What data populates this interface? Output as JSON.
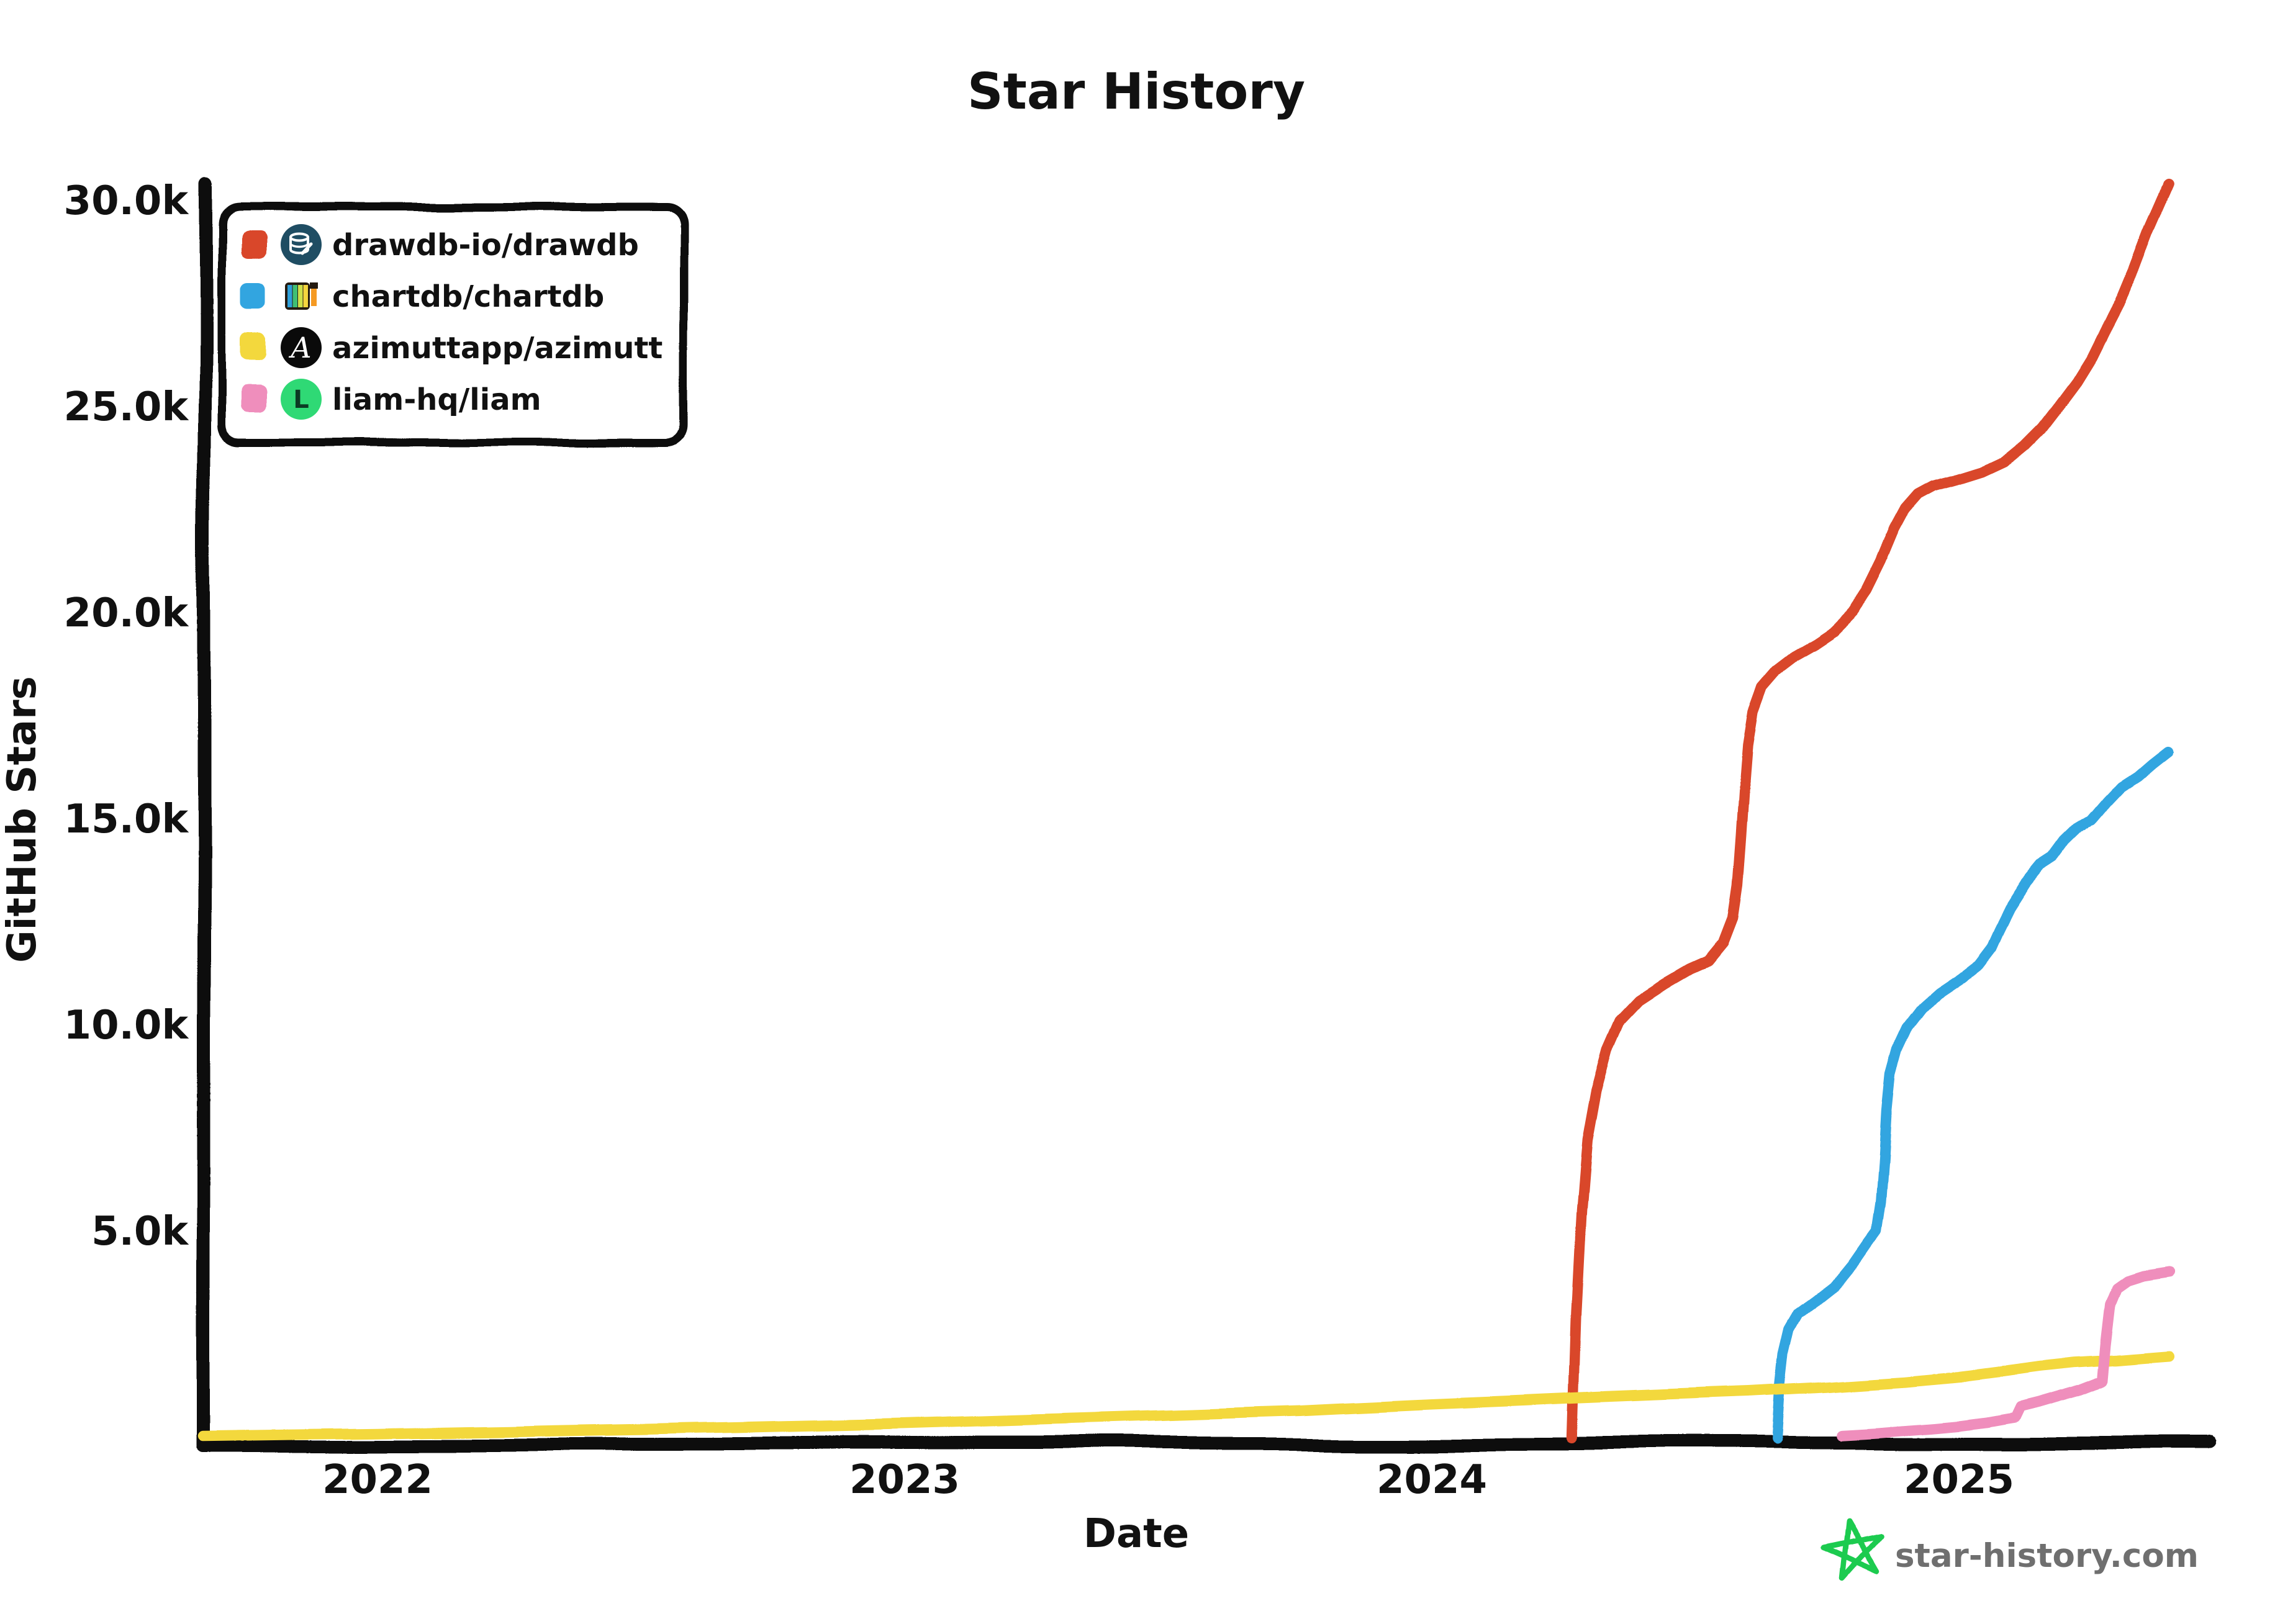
{
  "title": "Star History",
  "watermark": "star-history.com",
  "chart_data": {
    "type": "line",
    "title": "Star History",
    "xlabel": "Date",
    "ylabel": "GitHub Stars",
    "x_ticks": [
      {
        "label": "2022",
        "value": 2022
      },
      {
        "label": "2023",
        "value": 2023
      },
      {
        "label": "2024",
        "value": 2024
      },
      {
        "label": "2025",
        "value": 2025
      }
    ],
    "y_ticks": [
      {
        "label": "5.0k",
        "value": 5000
      },
      {
        "label": "10.0k",
        "value": 10000
      },
      {
        "label": "15.0k",
        "value": 15000
      },
      {
        "label": "20.0k",
        "value": 20000
      },
      {
        "label": "25.0k",
        "value": 25000
      },
      {
        "label": "30.0k",
        "value": 30000
      }
    ],
    "xlim": [
      2021.67,
      2025.48
    ],
    "ylim": [
      0,
      30500
    ],
    "grid": false,
    "legend_position": "top-left",
    "series": [
      {
        "name": "drawdb-io/drawdb",
        "color": "#d9472b",
        "icon": "drawdb-avatar",
        "data": [
          [
            2024.266,
            0
          ],
          [
            2024.273,
            3000
          ],
          [
            2024.283,
            5500
          ],
          [
            2024.294,
            7200
          ],
          [
            2024.311,
            8400
          ],
          [
            2024.332,
            9400
          ],
          [
            2024.356,
            10100
          ],
          [
            2024.393,
            10600
          ],
          [
            2024.441,
            11000
          ],
          [
            2024.488,
            11350
          ],
          [
            2024.523,
            11550
          ],
          [
            2024.552,
            12000
          ],
          [
            2024.57,
            12600
          ],
          [
            2024.579,
            13400
          ],
          [
            2024.586,
            14600
          ],
          [
            2024.592,
            15800
          ],
          [
            2024.598,
            16800
          ],
          [
            2024.608,
            17600
          ],
          [
            2024.625,
            18200
          ],
          [
            2024.652,
            18600
          ],
          [
            2024.688,
            18950
          ],
          [
            2024.729,
            19250
          ],
          [
            2024.764,
            19550
          ],
          [
            2024.799,
            20000
          ],
          [
            2024.826,
            20500
          ],
          [
            2024.853,
            21200
          ],
          [
            2024.879,
            22000
          ],
          [
            2024.9,
            22500
          ],
          [
            2024.924,
            22850
          ],
          [
            2024.953,
            23050
          ],
          [
            2024.994,
            23200
          ],
          [
            2025.044,
            23400
          ],
          [
            2025.086,
            23650
          ],
          [
            2025.124,
            24050
          ],
          [
            2025.159,
            24500
          ],
          [
            2025.192,
            25050
          ],
          [
            2025.224,
            25600
          ],
          [
            2025.253,
            26200
          ],
          [
            2025.28,
            26900
          ],
          [
            2025.304,
            27500
          ],
          [
            2025.33,
            28300
          ],
          [
            2025.357,
            29200
          ],
          [
            2025.381,
            29900
          ],
          [
            2025.398,
            30400
          ]
        ]
      },
      {
        "name": "chartdb/chartdb",
        "color": "#30a5e0",
        "icon": "chartdb-avatar",
        "data": [
          [
            2024.655,
            0
          ],
          [
            2024.661,
            1200
          ],
          [
            2024.668,
            2000
          ],
          [
            2024.679,
            2600
          ],
          [
            2024.697,
            3000
          ],
          [
            2024.729,
            3300
          ],
          [
            2024.764,
            3650
          ],
          [
            2024.799,
            4200
          ],
          [
            2024.826,
            4700
          ],
          [
            2024.843,
            5000
          ],
          [
            2024.851,
            5700
          ],
          [
            2024.857,
            6800
          ],
          [
            2024.862,
            7900
          ],
          [
            2024.869,
            8800
          ],
          [
            2024.882,
            9400
          ],
          [
            2024.902,
            9950
          ],
          [
            2024.929,
            10400
          ],
          [
            2024.964,
            10800
          ],
          [
            2025.005,
            11150
          ],
          [
            2025.04,
            11500
          ],
          [
            2025.064,
            11900
          ],
          [
            2025.078,
            12300
          ],
          [
            2025.099,
            12850
          ],
          [
            2025.129,
            13450
          ],
          [
            2025.158,
            13900
          ],
          [
            2025.182,
            14100
          ],
          [
            2025.205,
            14500
          ],
          [
            2025.229,
            14800
          ],
          [
            2025.255,
            15000
          ],
          [
            2025.285,
            15450
          ],
          [
            2025.311,
            15800
          ],
          [
            2025.341,
            16050
          ],
          [
            2025.368,
            16350
          ],
          [
            2025.398,
            16650
          ]
        ]
      },
      {
        "name": "azimuttapp/azimutt",
        "color": "#f3d83e",
        "icon": "azimutt-avatar",
        "data": [
          [
            2021.67,
            20
          ],
          [
            2022.0,
            80
          ],
          [
            2022.25,
            140
          ],
          [
            2022.5,
            200
          ],
          [
            2022.75,
            270
          ],
          [
            2023.0,
            340
          ],
          [
            2023.25,
            440
          ],
          [
            2023.5,
            540
          ],
          [
            2023.75,
            640
          ],
          [
            2024.0,
            790
          ],
          [
            2024.15,
            870
          ],
          [
            2024.3,
            950
          ],
          [
            2024.45,
            1030
          ],
          [
            2024.6,
            1100
          ],
          [
            2024.75,
            1200
          ],
          [
            2024.9,
            1330
          ],
          [
            2025.0,
            1450
          ],
          [
            2025.08,
            1580
          ],
          [
            2025.15,
            1700
          ],
          [
            2025.22,
            1790
          ],
          [
            2025.3,
            1850
          ],
          [
            2025.35,
            1900
          ],
          [
            2025.4,
            1950
          ]
        ]
      },
      {
        "name": "liam-hq/liam",
        "color": "#ef8ebc",
        "icon": "liam-avatar",
        "data": [
          [
            2024.78,
            40
          ],
          [
            2024.85,
            90
          ],
          [
            2024.95,
            190
          ],
          [
            2025.0,
            250
          ],
          [
            2025.05,
            330
          ],
          [
            2025.09,
            420
          ],
          [
            2025.105,
            450
          ],
          [
            2025.115,
            720
          ],
          [
            2025.15,
            830
          ],
          [
            2025.19,
            980
          ],
          [
            2025.23,
            1130
          ],
          [
            2025.26,
            1280
          ],
          [
            2025.272,
            1350
          ],
          [
            2025.278,
            2200
          ],
          [
            2025.287,
            3200
          ],
          [
            2025.3,
            3600
          ],
          [
            2025.32,
            3780
          ],
          [
            2025.35,
            3900
          ],
          [
            2025.4,
            4000
          ]
        ]
      }
    ]
  }
}
